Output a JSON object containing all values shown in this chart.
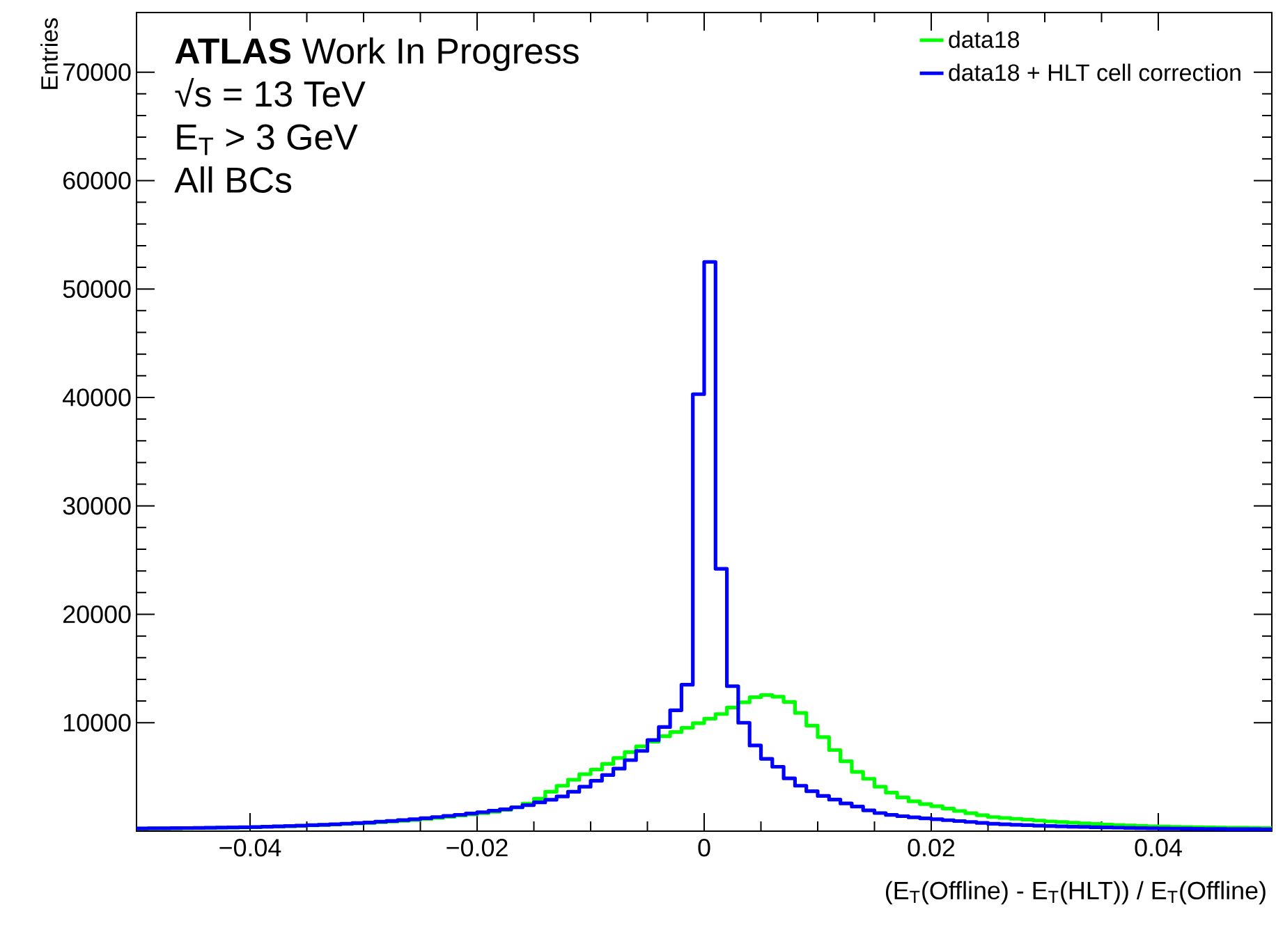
{
  "chart_data": {
    "type": "histogram",
    "xlabel": "(E$_{T}$(Offline) - E$_{T}$(HLT)) / E$_{T}$(Offline)",
    "ylabel": "Entries",
    "annotations": [
      "**ATLAS** Work In Progress",
      "√s = 13 TeV",
      "E$_{T}$ > 3 GeV",
      "All BCs"
    ],
    "bins": [
      -0.05,
      -0.049,
      -0.048,
      -0.047,
      -0.046,
      -0.045,
      -0.044,
      -0.043,
      -0.042,
      -0.041,
      -0.04,
      -0.039,
      -0.038,
      -0.037,
      -0.036,
      -0.035,
      -0.034,
      -0.033,
      -0.032,
      -0.031,
      -0.03,
      -0.029,
      -0.028,
      -0.027,
      -0.026,
      -0.025,
      -0.024,
      -0.023,
      -0.022,
      -0.021,
      -0.02,
      -0.019,
      -0.018,
      -0.017,
      -0.016,
      -0.015,
      -0.014,
      -0.013,
      -0.012,
      -0.011,
      -0.01,
      -0.009,
      -0.008,
      -0.007,
      -0.006,
      -0.005,
      -0.004,
      -0.003,
      -0.002,
      -0.001,
      0,
      0.001,
      0.002,
      0.003,
      0.004,
      0.005,
      0.006,
      0.007,
      0.008,
      0.009,
      0.01,
      0.011,
      0.012,
      0.013,
      0.014,
      0.015,
      0.016,
      0.017,
      0.018,
      0.019,
      0.02,
      0.021,
      0.022,
      0.023,
      0.024,
      0.025,
      0.026,
      0.027,
      0.028,
      0.029,
      0.03,
      0.031,
      0.032,
      0.033,
      0.034,
      0.035,
      0.036,
      0.037,
      0.038,
      0.039,
      0.04,
      0.041,
      0.042,
      0.043,
      0.044,
      0.045,
      0.046,
      0.047,
      0.048,
      0.049,
      0.05
    ],
    "series": [
      {
        "name": "data18",
        "color": "#00ff00",
        "values": [
          240,
          250,
          260,
          270,
          280,
          290,
          300,
          320,
          330,
          350,
          370,
          400,
          420,
          450,
          490,
          530,
          570,
          610,
          660,
          710,
          760,
          820,
          890,
          960,
          1040,
          1130,
          1220,
          1320,
          1430,
          1540,
          1660,
          1790,
          1960,
          2200,
          2550,
          2990,
          3630,
          4190,
          4740,
          5260,
          5680,
          6200,
          6750,
          7300,
          7820,
          8250,
          8760,
          9140,
          9530,
          9960,
          10380,
          10800,
          11400,
          11880,
          12350,
          12560,
          12400,
          11920,
          10900,
          9740,
          8680,
          7480,
          6450,
          5470,
          4830,
          4100,
          3550,
          3100,
          2750,
          2500,
          2300,
          2080,
          1860,
          1660,
          1470,
          1300,
          1220,
          1140,
          1060,
          980,
          900,
          840,
          780,
          720,
          660,
          600,
          560,
          520,
          490,
          450,
          420,
          400,
          380,
          360,
          340,
          330,
          320,
          310,
          300,
          290
        ]
      },
      {
        "name": "data18 + HLT cell correction",
        "color": "#0000ff",
        "values": [
          250,
          260,
          270,
          280,
          290,
          300,
          310,
          330,
          340,
          360,
          380,
          410,
          440,
          470,
          510,
          550,
          590,
          640,
          690,
          740,
          800,
          870,
          940,
          1020,
          1100,
          1200,
          1300,
          1400,
          1510,
          1630,
          1750,
          1880,
          2020,
          2200,
          2400,
          2650,
          2900,
          3200,
          3630,
          4100,
          4650,
          5170,
          5770,
          6550,
          7400,
          8400,
          9600,
          11150,
          13500,
          40300,
          52500,
          24200,
          13370,
          10000,
          7900,
          6670,
          5940,
          4870,
          4190,
          3680,
          3250,
          2910,
          2560,
          2270,
          1920,
          1670,
          1500,
          1380,
          1270,
          1180,
          1100,
          1010,
          930,
          850,
          760,
          680,
          640,
          590,
          550,
          510,
          470,
          440,
          410,
          390,
          360,
          340,
          320,
          300,
          280,
          260,
          250,
          240,
          230,
          220,
          210,
          200,
          190,
          185,
          180,
          175
        ]
      }
    ],
    "xlim": [
      -0.05,
      0.05
    ],
    "ylim": [
      0,
      75500
    ],
    "xticks": [
      {
        "value": -0.04,
        "label": "−0.04"
      },
      {
        "value": -0.02,
        "label": "−0.02"
      },
      0,
      0.02,
      0.04
    ],
    "yticks": [
      10000,
      20000,
      30000,
      40000,
      50000,
      60000,
      70000
    ],
    "legend": "top right"
  }
}
